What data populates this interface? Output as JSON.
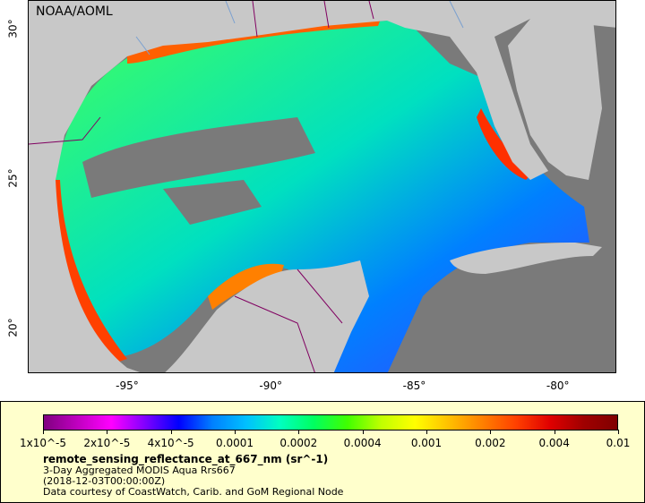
{
  "map": {
    "credit": "NOAA/AOML",
    "x_ticks": [
      {
        "label": "-95°",
        "lon": -95
      },
      {
        "label": "-90°",
        "lon": -90
      },
      {
        "label": "-85°",
        "lon": -85
      },
      {
        "label": "-80°",
        "lon": -80
      }
    ],
    "y_ticks": [
      {
        "label": "30°",
        "lat": 30
      },
      {
        "label": "25°",
        "lat": 25
      },
      {
        "label": "20°",
        "lat": 20
      }
    ],
    "lon_range": [
      -98.5,
      -78
    ],
    "lat_range": [
      18.5,
      31
    ],
    "land_color": "#c8c8c8",
    "no_data_color": "#7a7a7a",
    "border_color": "#800060",
    "river_color": "#7aa0d0"
  },
  "legend": {
    "background": "#ffffcc",
    "colorbar_colors": [
      "#800080",
      "#c000c0",
      "#ff00ff",
      "#8000ff",
      "#0000ff",
      "#0080ff",
      "#00c0ff",
      "#00ffc0",
      "#00ff60",
      "#40ff00",
      "#c0ff00",
      "#ffff00",
      "#ffc000",
      "#ff8000",
      "#ff4000",
      "#e00000",
      "#a00000",
      "#800000"
    ],
    "ticks": [
      "1x10^-5",
      "2x10^-5",
      "4x10^-5",
      "0.0001",
      "0.0002",
      "0.0004",
      "0.001",
      "0.002",
      "0.004",
      "0.01"
    ],
    "title": "remote_sensing_reflectance_at_667_nm (sr^-1)",
    "line1": "3-Day Aggregated MODIS Aqua Rrs667",
    "line2": "(2018-12-03T00:00:00Z)",
    "line3": "Data courtesy of CoastWatch, Carib. and GoM Regional Node"
  }
}
